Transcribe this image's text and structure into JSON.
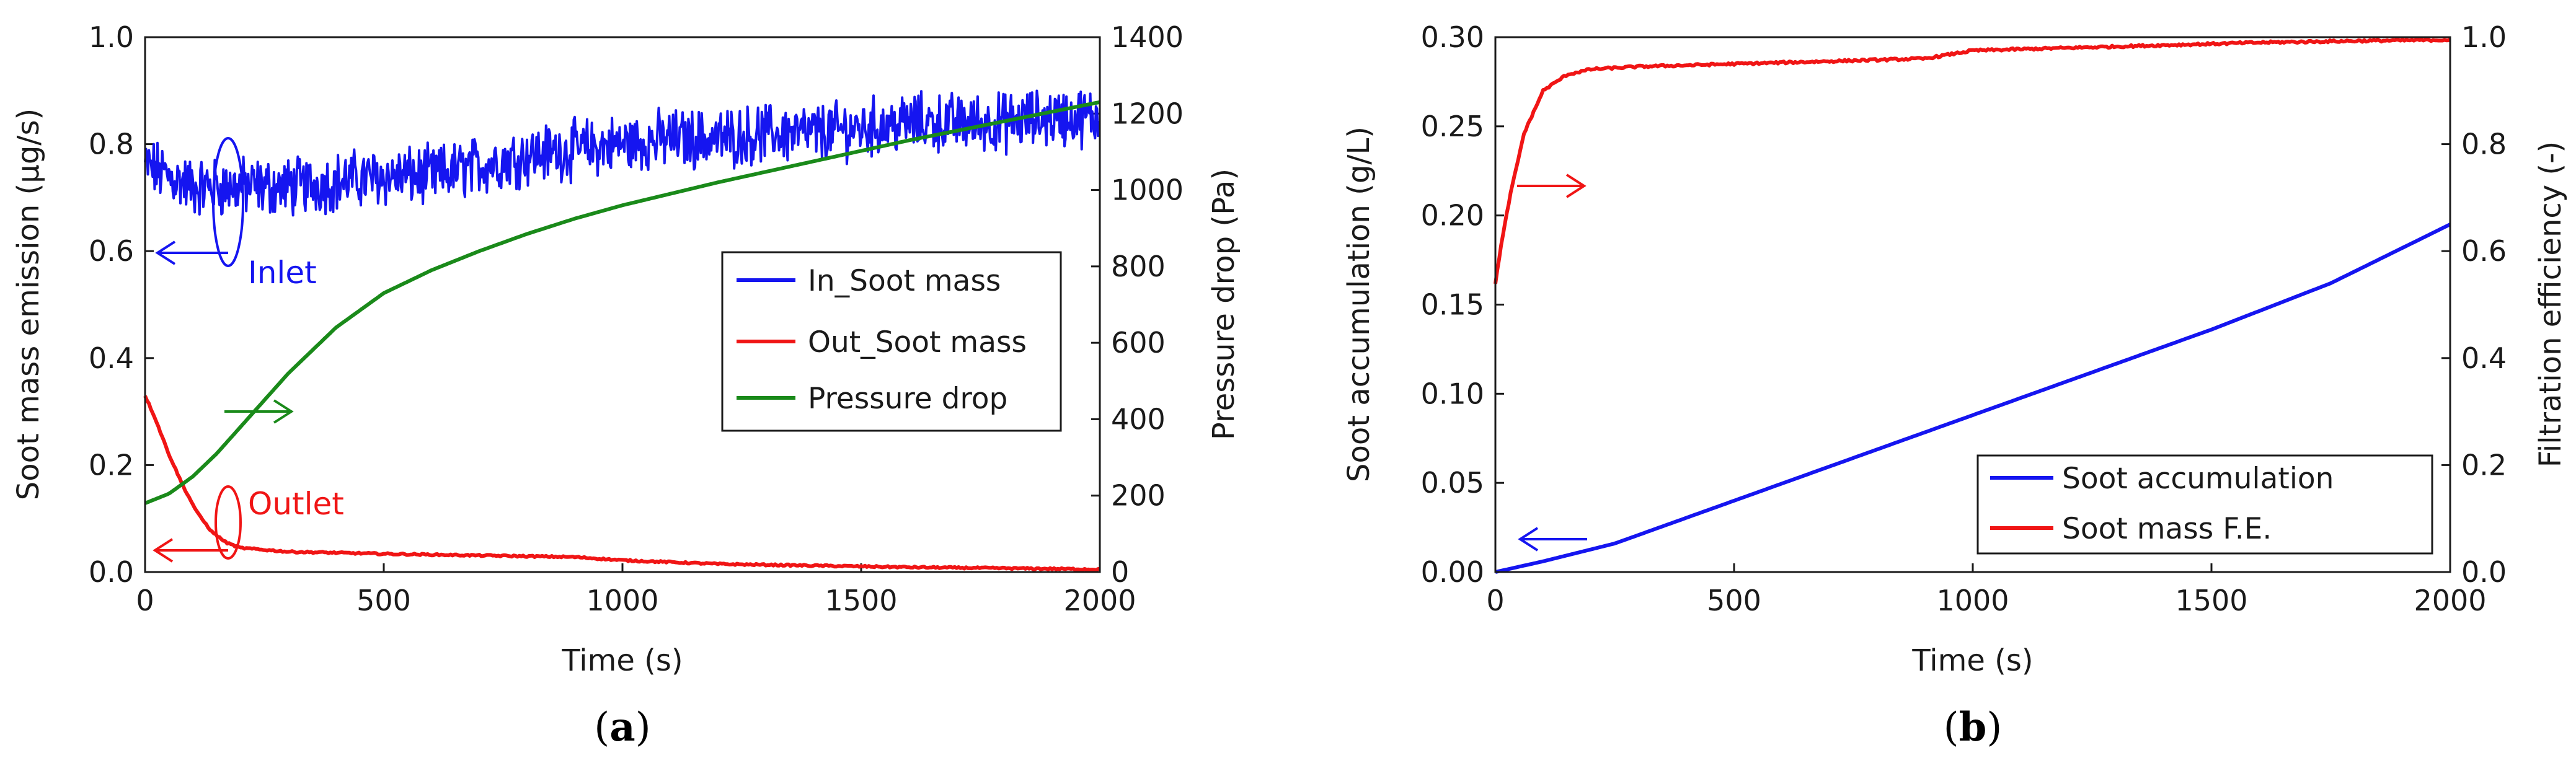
{
  "colors": {
    "blue": "#1515f0",
    "red": "#f01515",
    "green": "#1a8a1a",
    "axis": "#1a1a1a"
  },
  "chart_data": [
    {
      "type": "line",
      "panel_label": "a",
      "xlabel": "Time (s)",
      "ylabel": "Soot mass emission (µg/s)",
      "y2label": "Pressure drop (Pa)",
      "xlim": [
        0,
        2000
      ],
      "ylim": [
        0,
        1.0
      ],
      "y2lim": [
        0,
        1400
      ],
      "xticks": [
        "0",
        "500",
        "1000",
        "1500",
        "2000"
      ],
      "yticks": [
        "0.0",
        "0.2",
        "0.4",
        "0.6",
        "0.8",
        "1.0"
      ],
      "y2ticks": [
        "0",
        "200",
        "400",
        "600",
        "800",
        "1000",
        "1200",
        "1400"
      ],
      "legend_position": "center-right",
      "series": [
        {
          "name": "In_Soot mass",
          "axis": "left",
          "color": "blue",
          "noisy": true,
          "x": [
            0,
            50,
            100,
            200,
            300,
            400,
            500,
            600,
            700,
            800,
            900,
            1000,
            1100,
            1200,
            1300,
            1400,
            1500,
            1600,
            1700,
            1800,
            1900,
            2000
          ],
          "y": [
            0.76,
            0.74,
            0.72,
            0.72,
            0.72,
            0.73,
            0.74,
            0.74,
            0.76,
            0.78,
            0.79,
            0.8,
            0.81,
            0.81,
            0.82,
            0.82,
            0.83,
            0.84,
            0.84,
            0.84,
            0.85,
            0.85
          ]
        },
        {
          "name": "Out_Soot mass",
          "axis": "left",
          "color": "red",
          "noisy": false,
          "x": [
            0,
            20,
            50,
            80,
            110,
            140,
            170,
            200,
            300,
            400,
            500,
            700,
            900,
            1000,
            1200,
            1400,
            1600,
            1800,
            2000
          ],
          "y": [
            0.33,
            0.29,
            0.22,
            0.16,
            0.11,
            0.075,
            0.055,
            0.045,
            0.038,
            0.036,
            0.034,
            0.031,
            0.028,
            0.022,
            0.015,
            0.012,
            0.009,
            0.007,
            0.005
          ]
        },
        {
          "name": "Pressure drop",
          "axis": "right",
          "color": "green",
          "noisy": false,
          "x": [
            0,
            50,
            100,
            150,
            200,
            250,
            300,
            400,
            500,
            600,
            700,
            800,
            900,
            1000,
            1200,
            1400,
            1600,
            1800,
            2000
          ],
          "y": [
            180,
            205,
            250,
            310,
            380,
            450,
            520,
            640,
            730,
            790,
            840,
            885,
            925,
            960,
            1020,
            1075,
            1130,
            1180,
            1230
          ]
        }
      ],
      "annotations": [
        {
          "text": "Inlet",
          "color": "blue"
        },
        {
          "text": "Outlet",
          "color": "red"
        }
      ]
    },
    {
      "type": "line",
      "panel_label": "b",
      "xlabel": "Time (s)",
      "ylabel": "Soot accumulation (g/L)",
      "y2label": "Filtration efficiency (-)",
      "xlim": [
        0,
        2000
      ],
      "ylim": [
        0,
        0.3
      ],
      "y2lim": [
        0,
        1.0
      ],
      "xticks": [
        "0",
        "500",
        "1000",
        "1500",
        "2000"
      ],
      "yticks": [
        "0.00",
        "0.05",
        "0.10",
        "0.15",
        "0.20",
        "0.25",
        "0.30"
      ],
      "y2ticks": [
        "0.0",
        "0.2",
        "0.4",
        "0.6",
        "0.8",
        "1.0"
      ],
      "legend_position": "lower-right",
      "series": [
        {
          "name": "Soot accumulation",
          "axis": "left",
          "color": "blue",
          "noisy": false,
          "x": [
            0,
            100,
            250,
            500,
            750,
            1000,
            1250,
            1500,
            1750,
            2000
          ],
          "y": [
            0.0,
            0.006,
            0.016,
            0.04,
            0.064,
            0.088,
            0.112,
            0.136,
            0.162,
            0.195
          ]
        },
        {
          "name": "Soot mass F.E.",
          "axis": "right",
          "color": "red",
          "noisy": false,
          "x": [
            0,
            10,
            30,
            60,
            100,
            150,
            200,
            300,
            500,
            700,
            900,
            1000,
            1200,
            1400,
            1600,
            1800,
            2000
          ],
          "y": [
            0.54,
            0.6,
            0.7,
            0.82,
            0.9,
            0.93,
            0.94,
            0.945,
            0.95,
            0.955,
            0.96,
            0.975,
            0.98,
            0.985,
            0.99,
            0.993,
            0.995
          ]
        }
      ],
      "annotations": []
    }
  ]
}
